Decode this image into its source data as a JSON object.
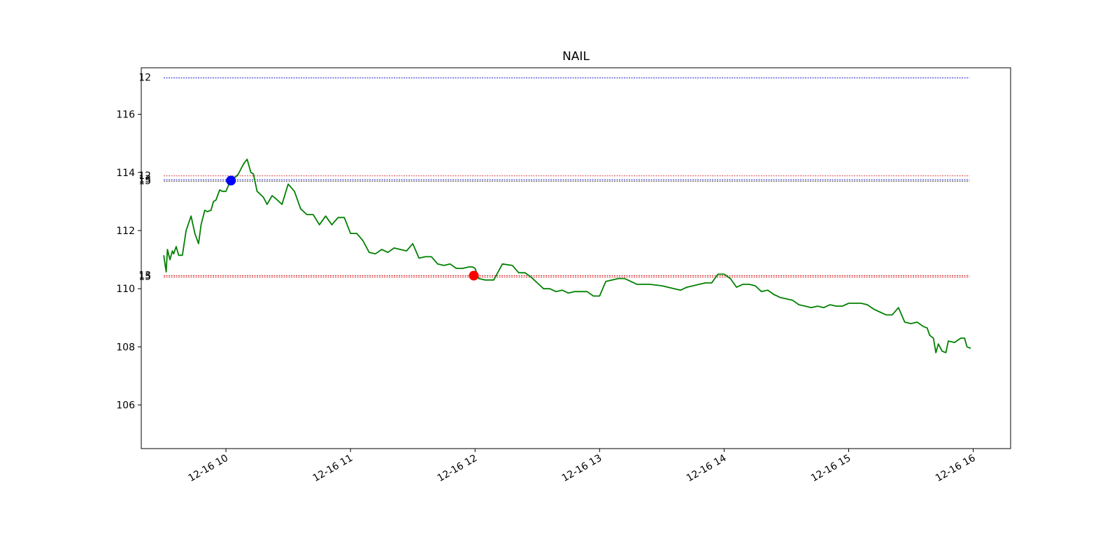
{
  "chart_data": {
    "type": "line",
    "title": "NAIL",
    "xlabel": "",
    "ylabel": "",
    "x_tick_labels": [
      "12-16 10",
      "12-16 11",
      "12-16 12",
      "12-16 13",
      "12-16 14",
      "12-16 15",
      "12-16 16"
    ],
    "x_ticks_hours": [
      10,
      11,
      12,
      13,
      14,
      15,
      16
    ],
    "xlim_hours": [
      9.32,
      16.3
    ],
    "y_ticks": [
      106,
      108,
      110,
      112,
      114,
      116
    ],
    "ylim": [
      104.5,
      117.6
    ],
    "grid": false,
    "series": [
      {
        "color": "#008000",
        "time_hours": [
          9.5,
          9.52,
          9.53,
          9.55,
          9.57,
          9.58,
          9.6,
          9.62,
          9.63,
          9.65,
          9.68,
          9.72,
          9.75,
          9.78,
          9.8,
          9.83,
          9.85,
          9.88,
          9.9,
          9.92,
          9.95,
          9.97,
          10.0,
          10.03,
          10.05,
          10.08,
          10.1,
          10.13,
          10.15,
          10.17,
          10.2,
          10.22,
          10.25,
          10.3,
          10.33,
          10.37,
          10.4,
          10.45,
          10.5,
          10.55,
          10.6,
          10.65,
          10.7,
          10.75,
          10.8,
          10.85,
          10.9,
          10.95,
          11.0,
          11.05,
          11.1,
          11.15,
          11.2,
          11.25,
          11.3,
          11.35,
          11.4,
          11.45,
          11.5,
          11.55,
          11.6,
          11.65,
          11.7,
          11.75,
          11.8,
          11.85,
          11.9,
          11.95,
          11.98,
          12.0,
          12.03,
          12.08,
          12.15,
          12.22,
          12.3,
          12.35,
          12.4,
          12.45,
          12.5,
          12.55,
          12.6,
          12.65,
          12.7,
          12.75,
          12.8,
          12.9,
          12.95,
          13.0,
          13.05,
          13.1,
          13.15,
          13.2,
          13.3,
          13.4,
          13.5,
          13.55,
          13.6,
          13.65,
          13.7,
          13.75,
          13.8,
          13.85,
          13.9,
          13.95,
          14.0,
          14.05,
          14.1,
          14.15,
          14.2,
          14.25,
          14.3,
          14.35,
          14.4,
          14.45,
          14.5,
          14.55,
          14.6,
          14.65,
          14.7,
          14.75,
          14.8,
          14.85,
          14.9,
          14.95,
          15.0,
          15.05,
          15.1,
          15.15,
          15.2,
          15.25,
          15.3,
          15.35,
          15.4,
          15.45,
          15.5,
          15.55,
          15.6,
          15.63,
          15.65,
          15.68,
          15.7,
          15.72,
          15.75,
          15.78,
          15.8,
          15.85,
          15.9,
          15.93,
          15.95,
          15.98
        ],
        "values": [
          111.15,
          110.58,
          111.35,
          111.0,
          111.3,
          111.2,
          111.45,
          111.15,
          111.15,
          111.15,
          112.0,
          112.5,
          111.9,
          111.55,
          112.2,
          112.7,
          112.65,
          112.7,
          113.0,
          113.05,
          113.4,
          113.35,
          113.35,
          113.65,
          113.8,
          113.85,
          113.95,
          114.2,
          114.35,
          114.45,
          114.0,
          113.95,
          113.35,
          113.15,
          112.9,
          113.2,
          113.1,
          112.9,
          113.6,
          113.35,
          112.75,
          112.55,
          112.55,
          112.2,
          112.5,
          112.2,
          112.45,
          112.45,
          111.9,
          111.9,
          111.65,
          111.25,
          111.2,
          111.35,
          111.25,
          111.4,
          111.35,
          111.3,
          111.55,
          111.05,
          111.1,
          111.1,
          110.85,
          110.8,
          110.85,
          110.7,
          110.7,
          110.75,
          110.75,
          110.7,
          110.35,
          110.3,
          110.3,
          110.85,
          110.8,
          110.55,
          110.55,
          110.4,
          110.2,
          110.0,
          110.0,
          109.9,
          109.95,
          109.85,
          109.9,
          109.9,
          109.75,
          109.75,
          110.25,
          110.3,
          110.35,
          110.35,
          110.15,
          110.15,
          110.1,
          110.05,
          110.0,
          109.95,
          110.05,
          110.1,
          110.15,
          110.2,
          110.2,
          110.5,
          110.5,
          110.35,
          110.05,
          110.15,
          110.15,
          110.1,
          109.9,
          109.95,
          109.8,
          109.7,
          109.65,
          109.6,
          109.45,
          109.4,
          109.35,
          109.4,
          109.35,
          109.45,
          109.4,
          109.4,
          109.5,
          109.5,
          109.5,
          109.45,
          109.3,
          109.2,
          109.1,
          109.1,
          109.35,
          108.85,
          108.8,
          108.85,
          108.7,
          108.65,
          108.4,
          108.3,
          107.8,
          108.1,
          107.85,
          107.8,
          108.2,
          108.15,
          108.3,
          108.3,
          108.0,
          107.95
        ]
      }
    ],
    "horizontal_lines": [
      {
        "label": "12",
        "y": 117.25,
        "color": "#0000cc"
      },
      {
        "label": "12",
        "y": 113.88,
        "color": "#cc0000"
      },
      {
        "label": "13",
        "y": 113.75,
        "color": "#0000cc"
      },
      {
        "label": "15",
        "y": 113.7,
        "color": "#000000"
      },
      {
        "label": "13",
        "y": 110.45,
        "color": "#cc0000"
      },
      {
        "label": "15",
        "y": 110.4,
        "color": "#cc0000"
      }
    ],
    "markers": [
      {
        "time_hours": 10.04,
        "y": 113.72,
        "color": "#0000ff"
      },
      {
        "time_hours": 11.99,
        "y": 110.45,
        "color": "#ff0000"
      }
    ]
  }
}
